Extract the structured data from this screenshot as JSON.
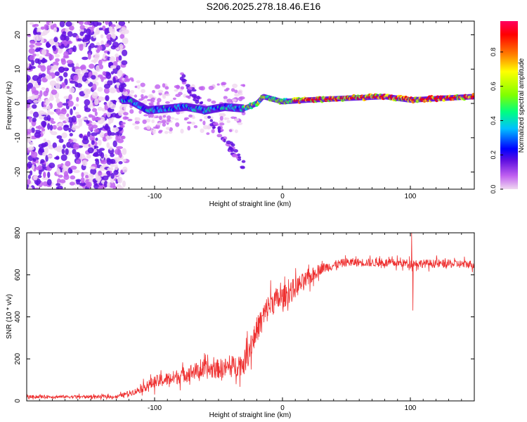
{
  "title": "S206.2025.278.18.46.E16",
  "chart_data": [
    {
      "id": "spectrogram",
      "type": "heatmap",
      "title": "S206.2025.278.18.46.E16",
      "xlabel": "Height of straight line (km)",
      "ylabel": "Frequency (Hz)",
      "xlim": [
        -200,
        150
      ],
      "ylim": [
        -25,
        24
      ],
      "xticks": [
        -100,
        0,
        100
      ],
      "xtick_labels": [
        "-100",
        "0",
        "100"
      ],
      "yticks": [
        -20,
        -10,
        0,
        10,
        20
      ],
      "ytick_labels": [
        "-20",
        "-10",
        "0",
        "10",
        "20"
      ],
      "colorbar": {
        "label": "Normalized spectral amplitude",
        "ticks": [
          0.0,
          0.2,
          0.4,
          0.6,
          0.8
        ],
        "tick_labels": [
          "0.0",
          "0.2",
          "0.4",
          "0.6",
          "0.8"
        ],
        "colormap": [
          "#f0d8f0",
          "#c060f0",
          "#6010e0",
          "#0000ff",
          "#00c0ff",
          "#00ff80",
          "#80ff00",
          "#ffff00",
          "#ff8000",
          "#ff0000",
          "#ff0060"
        ]
      },
      "ridge": {
        "description_points": [
          {
            "x": -120,
            "y": 1.0
          },
          {
            "x": -105,
            "y": -2.0
          },
          {
            "x": -90,
            "y": -1.5
          },
          {
            "x": -75,
            "y": -1.0
          },
          {
            "x": -60,
            "y": -2.0
          },
          {
            "x": -45,
            "y": -1.0
          },
          {
            "x": -30,
            "y": -1.5
          },
          {
            "x": -20,
            "y": 0.0
          },
          {
            "x": -15,
            "y": 2.0
          },
          {
            "x": -5,
            "y": 1.0
          },
          {
            "x": 0,
            "y": 0.5
          },
          {
            "x": 20,
            "y": 1.0
          },
          {
            "x": 50,
            "y": 1.5
          },
          {
            "x": 80,
            "y": 2.0
          },
          {
            "x": 100,
            "y": 1.0
          },
          {
            "x": 150,
            "y": 2.0
          }
        ]
      }
    },
    {
      "id": "snr",
      "type": "line",
      "xlabel": "Height of straight line (km)",
      "ylabel": "SNR (10 * v/v)",
      "xlim": [
        -200,
        150
      ],
      "ylim": [
        0,
        800
      ],
      "xticks": [
        -100,
        0,
        100
      ],
      "xtick_labels": [
        "-100",
        "0",
        "100"
      ],
      "yticks": [
        0,
        200,
        400,
        600,
        800
      ],
      "ytick_labels": [
        "0",
        "200",
        "400",
        "600",
        "800"
      ],
      "color": "#ee3030",
      "series": [
        {
          "name": "SNR",
          "envelope": [
            {
              "x": -200,
              "mean": 20,
              "spread": 15
            },
            {
              "x": -130,
              "mean": 20,
              "spread": 15
            },
            {
              "x": -115,
              "mean": 45,
              "spread": 30
            },
            {
              "x": -100,
              "mean": 90,
              "spread": 60
            },
            {
              "x": -85,
              "mean": 110,
              "spread": 70
            },
            {
              "x": -70,
              "mean": 140,
              "spread": 80
            },
            {
              "x": -55,
              "mean": 150,
              "spread": 90
            },
            {
              "x": -40,
              "mean": 160,
              "spread": 100
            },
            {
              "x": -30,
              "mean": 180,
              "spread": 110
            },
            {
              "x": -25,
              "mean": 260,
              "spread": 140
            },
            {
              "x": -20,
              "mean": 340,
              "spread": 120
            },
            {
              "x": -15,
              "mean": 400,
              "spread": 130
            },
            {
              "x": -10,
              "mean": 460,
              "spread": 130
            },
            {
              "x": -5,
              "mean": 480,
              "spread": 120
            },
            {
              "x": 0,
              "mean": 490,
              "spread": 110
            },
            {
              "x": 10,
              "mean": 540,
              "spread": 100
            },
            {
              "x": 20,
              "mean": 580,
              "spread": 80
            },
            {
              "x": 30,
              "mean": 630,
              "spread": 50
            },
            {
              "x": 50,
              "mean": 660,
              "spread": 40
            },
            {
              "x": 100,
              "mean": 655,
              "spread": 40
            },
            {
              "x": 150,
              "mean": 650,
              "spread": 40
            }
          ],
          "spike": [
            {
              "x": 101,
              "y": 800
            },
            {
              "x": 102,
              "y": 430
            }
          ]
        }
      ]
    }
  ]
}
